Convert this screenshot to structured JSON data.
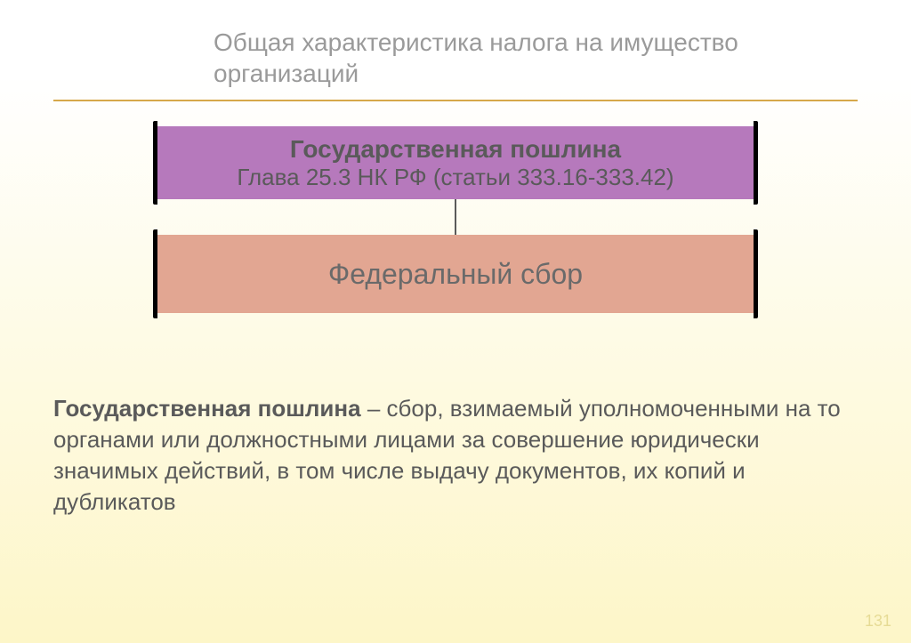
{
  "colors": {
    "bg_top": "#ffffff",
    "bg_bottom": "#fdf6c8",
    "title_text": "#9a9a9a",
    "rule": "#d6a84a",
    "box1_fill": "#b679bc",
    "box1_text": "#5a5a5a",
    "box2_fill": "#e2a692",
    "box2_text": "#6a6a6a",
    "cap": "#000000",
    "connector": "#5a5a5a",
    "body_text": "#5a5a5a",
    "page_num": "#d4c56a"
  },
  "layout": {
    "title_fontsize": 28,
    "rule_height": 2,
    "box1_w": 680,
    "box1_h": 82,
    "box2_w": 680,
    "box2_h": 88,
    "connector_h": 40,
    "box_line1_fontsize": 28,
    "box_line2_fontsize": 26,
    "box2_fontsize": 32,
    "def_fontsize": 26,
    "page_num_fontsize": 18
  },
  "title": "Общая характеристика налога на имущество организаций",
  "box1": {
    "line1": "Государственная пошлина",
    "line2": "Глава 25.3 НК РФ (статьи 333.16-333.42)"
  },
  "box2": {
    "text": "Федеральный сбор"
  },
  "definition": {
    "term": "Государственная пошлина",
    "rest": " – сбор, взимаемый уполномоченными на то органами или должностными лицами за совершение юридически значимых действий, в том числе выдачу документов, их копий и дубликатов"
  },
  "page_number": "131"
}
